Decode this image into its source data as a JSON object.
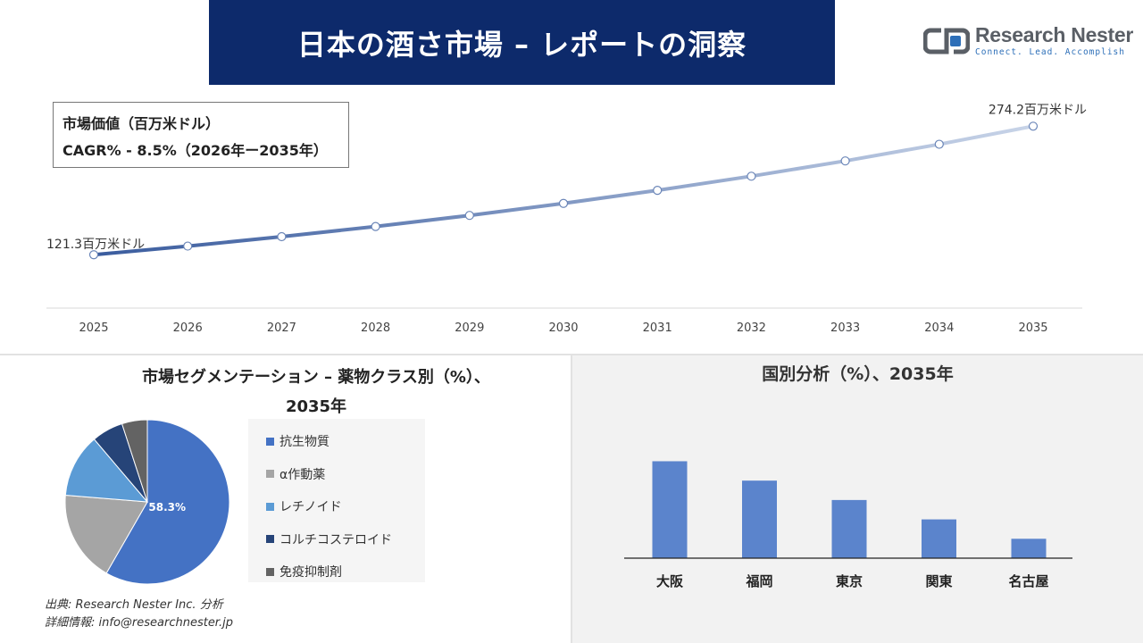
{
  "header": {
    "title": "日本の酒さ市場 – レポートの洞察"
  },
  "logo": {
    "name": "Research Nester",
    "tagline": "Connect. Lead. Accomplish"
  },
  "info_box": {
    "line1": "市場価値（百万米ドル）",
    "line2": "CAGR% - 8.5%（2026年ー2035年）"
  },
  "segment": {
    "title_line1": "市場セグメンテーション – 薬物クラス別（%）、",
    "title_line2": "2035年"
  },
  "country": {
    "title": "国別分析（%）、2035年"
  },
  "source": {
    "line1": "出典: Research Nester Inc. 分析",
    "line2": "詳細情報: info@researchnester.jp"
  },
  "colors": {
    "banner": "#0d2a6b",
    "line_start": "#3a5c9e",
    "line_end": "#c8d4e8",
    "bar": "#5b84cc"
  },
  "chart_data": [
    {
      "type": "line",
      "title": "",
      "x": [
        "2025",
        "2026",
        "2027",
        "2028",
        "2029",
        "2030",
        "2031",
        "2032",
        "2033",
        "2034",
        "2035"
      ],
      "values": [
        121.3,
        131.6,
        142.8,
        154.9,
        168.1,
        182.4,
        197.9,
        214.7,
        232.9,
        252.7,
        274.2
      ],
      "labels": {
        "first": "121.3百万米ドル",
        "last": "274.2百万米ドル"
      },
      "ylim": [
        60,
        300
      ],
      "grid": false
    },
    {
      "type": "pie",
      "title": "市場セグメンテーション – 薬物クラス別（%）、2035年",
      "slices": [
        {
          "name": "抗生物質",
          "value": 58.3,
          "label": "58.3%",
          "color": "#4472c4"
        },
        {
          "name": "α作動薬",
          "value": 18.0,
          "color": "#a5a5a5"
        },
        {
          "name": "レチノイド",
          "value": 12.5,
          "color": "#5b9bd5"
        },
        {
          "name": "コルチコステロイド",
          "value": 6.2,
          "color": "#264478"
        },
        {
          "name": "免疫抑制剤",
          "value": 5.0,
          "color": "#636363"
        }
      ],
      "legend": "right"
    },
    {
      "type": "bar",
      "title": "国別分析（%）、2035年",
      "categories": [
        "大阪",
        "福岡",
        "東京",
        "関東",
        "名古屋"
      ],
      "values": [
        30,
        24,
        18,
        12,
        6
      ],
      "ylim": [
        0,
        34
      ],
      "grid": false
    }
  ]
}
